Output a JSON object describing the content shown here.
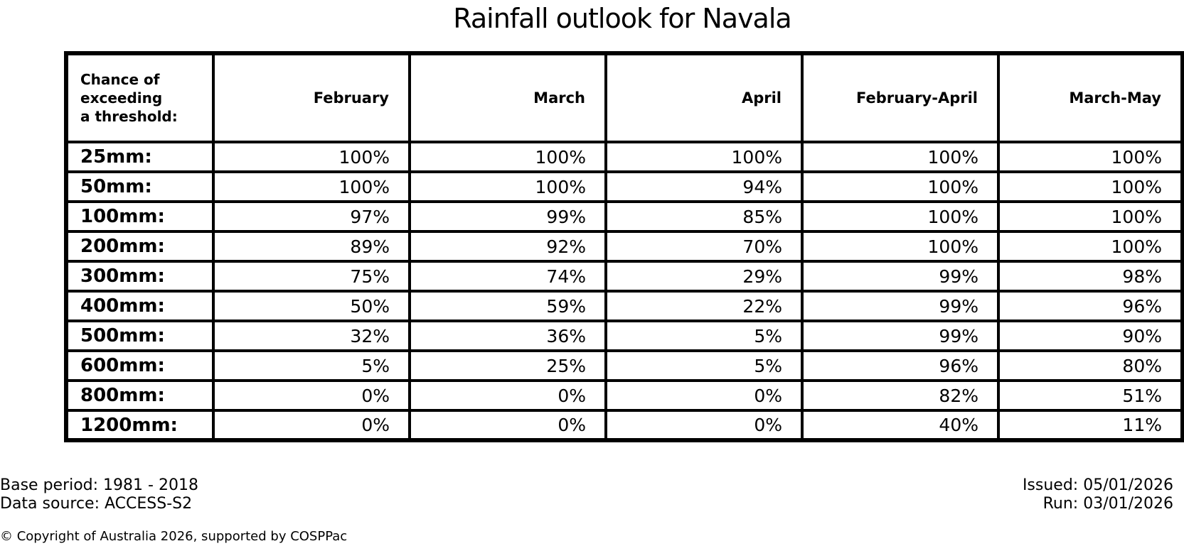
{
  "title": "Rainfall outlook for Navala",
  "table": {
    "corner_header": "Chance of\nexceeding\na threshold:",
    "month_columns": [
      "February",
      "March",
      "April",
      "February-April",
      "March-May"
    ],
    "rows": [
      {
        "label": "25mm:",
        "values": [
          "100%",
          "100%",
          "100%",
          "100%",
          "100%"
        ]
      },
      {
        "label": "50mm:",
        "values": [
          "100%",
          "100%",
          "94%",
          "100%",
          "100%"
        ]
      },
      {
        "label": "100mm:",
        "values": [
          "97%",
          "99%",
          "85%",
          "100%",
          "100%"
        ]
      },
      {
        "label": "200mm:",
        "values": [
          "89%",
          "92%",
          "70%",
          "100%",
          "100%"
        ]
      },
      {
        "label": "300mm:",
        "values": [
          "75%",
          "74%",
          "29%",
          "99%",
          "98%"
        ]
      },
      {
        "label": "400mm:",
        "values": [
          "50%",
          "59%",
          "22%",
          "99%",
          "96%"
        ]
      },
      {
        "label": "500mm:",
        "values": [
          "32%",
          "36%",
          "5%",
          "99%",
          "90%"
        ]
      },
      {
        "label": "600mm:",
        "values": [
          "5%",
          "25%",
          "5%",
          "96%",
          "80%"
        ]
      },
      {
        "label": "800mm:",
        "values": [
          "0%",
          "0%",
          "0%",
          "82%",
          "51%"
        ]
      },
      {
        "label": "1200mm:",
        "values": [
          "0%",
          "0%",
          "0%",
          "40%",
          "11%"
        ]
      }
    ]
  },
  "footer": {
    "base_period": "Base period: 1981 - 2018",
    "data_source": "Data source: ACCESS-S2",
    "issued": "Issued: 05/01/2026",
    "run": "Run: 03/01/2026",
    "copyright": "© Copyright of Australia 2026, supported by COSPPac"
  },
  "colors": {
    "background": "#ffffff",
    "text": "#000000",
    "border": "#000000"
  },
  "chart_data": {
    "type": "table",
    "title": "Rainfall outlook for Navala",
    "row_header": "Chance of exceeding a threshold:",
    "unit": "%",
    "categories": [
      "25mm",
      "50mm",
      "100mm",
      "200mm",
      "300mm",
      "400mm",
      "500mm",
      "600mm",
      "800mm",
      "1200mm"
    ],
    "series": [
      {
        "name": "February",
        "values": [
          100,
          100,
          97,
          89,
          75,
          50,
          32,
          5,
          0,
          0
        ]
      },
      {
        "name": "March",
        "values": [
          100,
          100,
          99,
          92,
          74,
          59,
          36,
          25,
          0,
          0
        ]
      },
      {
        "name": "April",
        "values": [
          100,
          94,
          85,
          70,
          29,
          22,
          5,
          5,
          0,
          0
        ]
      },
      {
        "name": "February-April",
        "values": [
          100,
          100,
          100,
          100,
          99,
          99,
          99,
          96,
          82,
          40
        ]
      },
      {
        "name": "March-May",
        "values": [
          100,
          100,
          100,
          100,
          98,
          96,
          90,
          80,
          51,
          11
        ]
      }
    ],
    "notes": [
      "Base period: 1981 - 2018",
      "Data source: ACCESS-S2",
      "Issued: 05/01/2026",
      "Run: 03/01/2026"
    ]
  }
}
